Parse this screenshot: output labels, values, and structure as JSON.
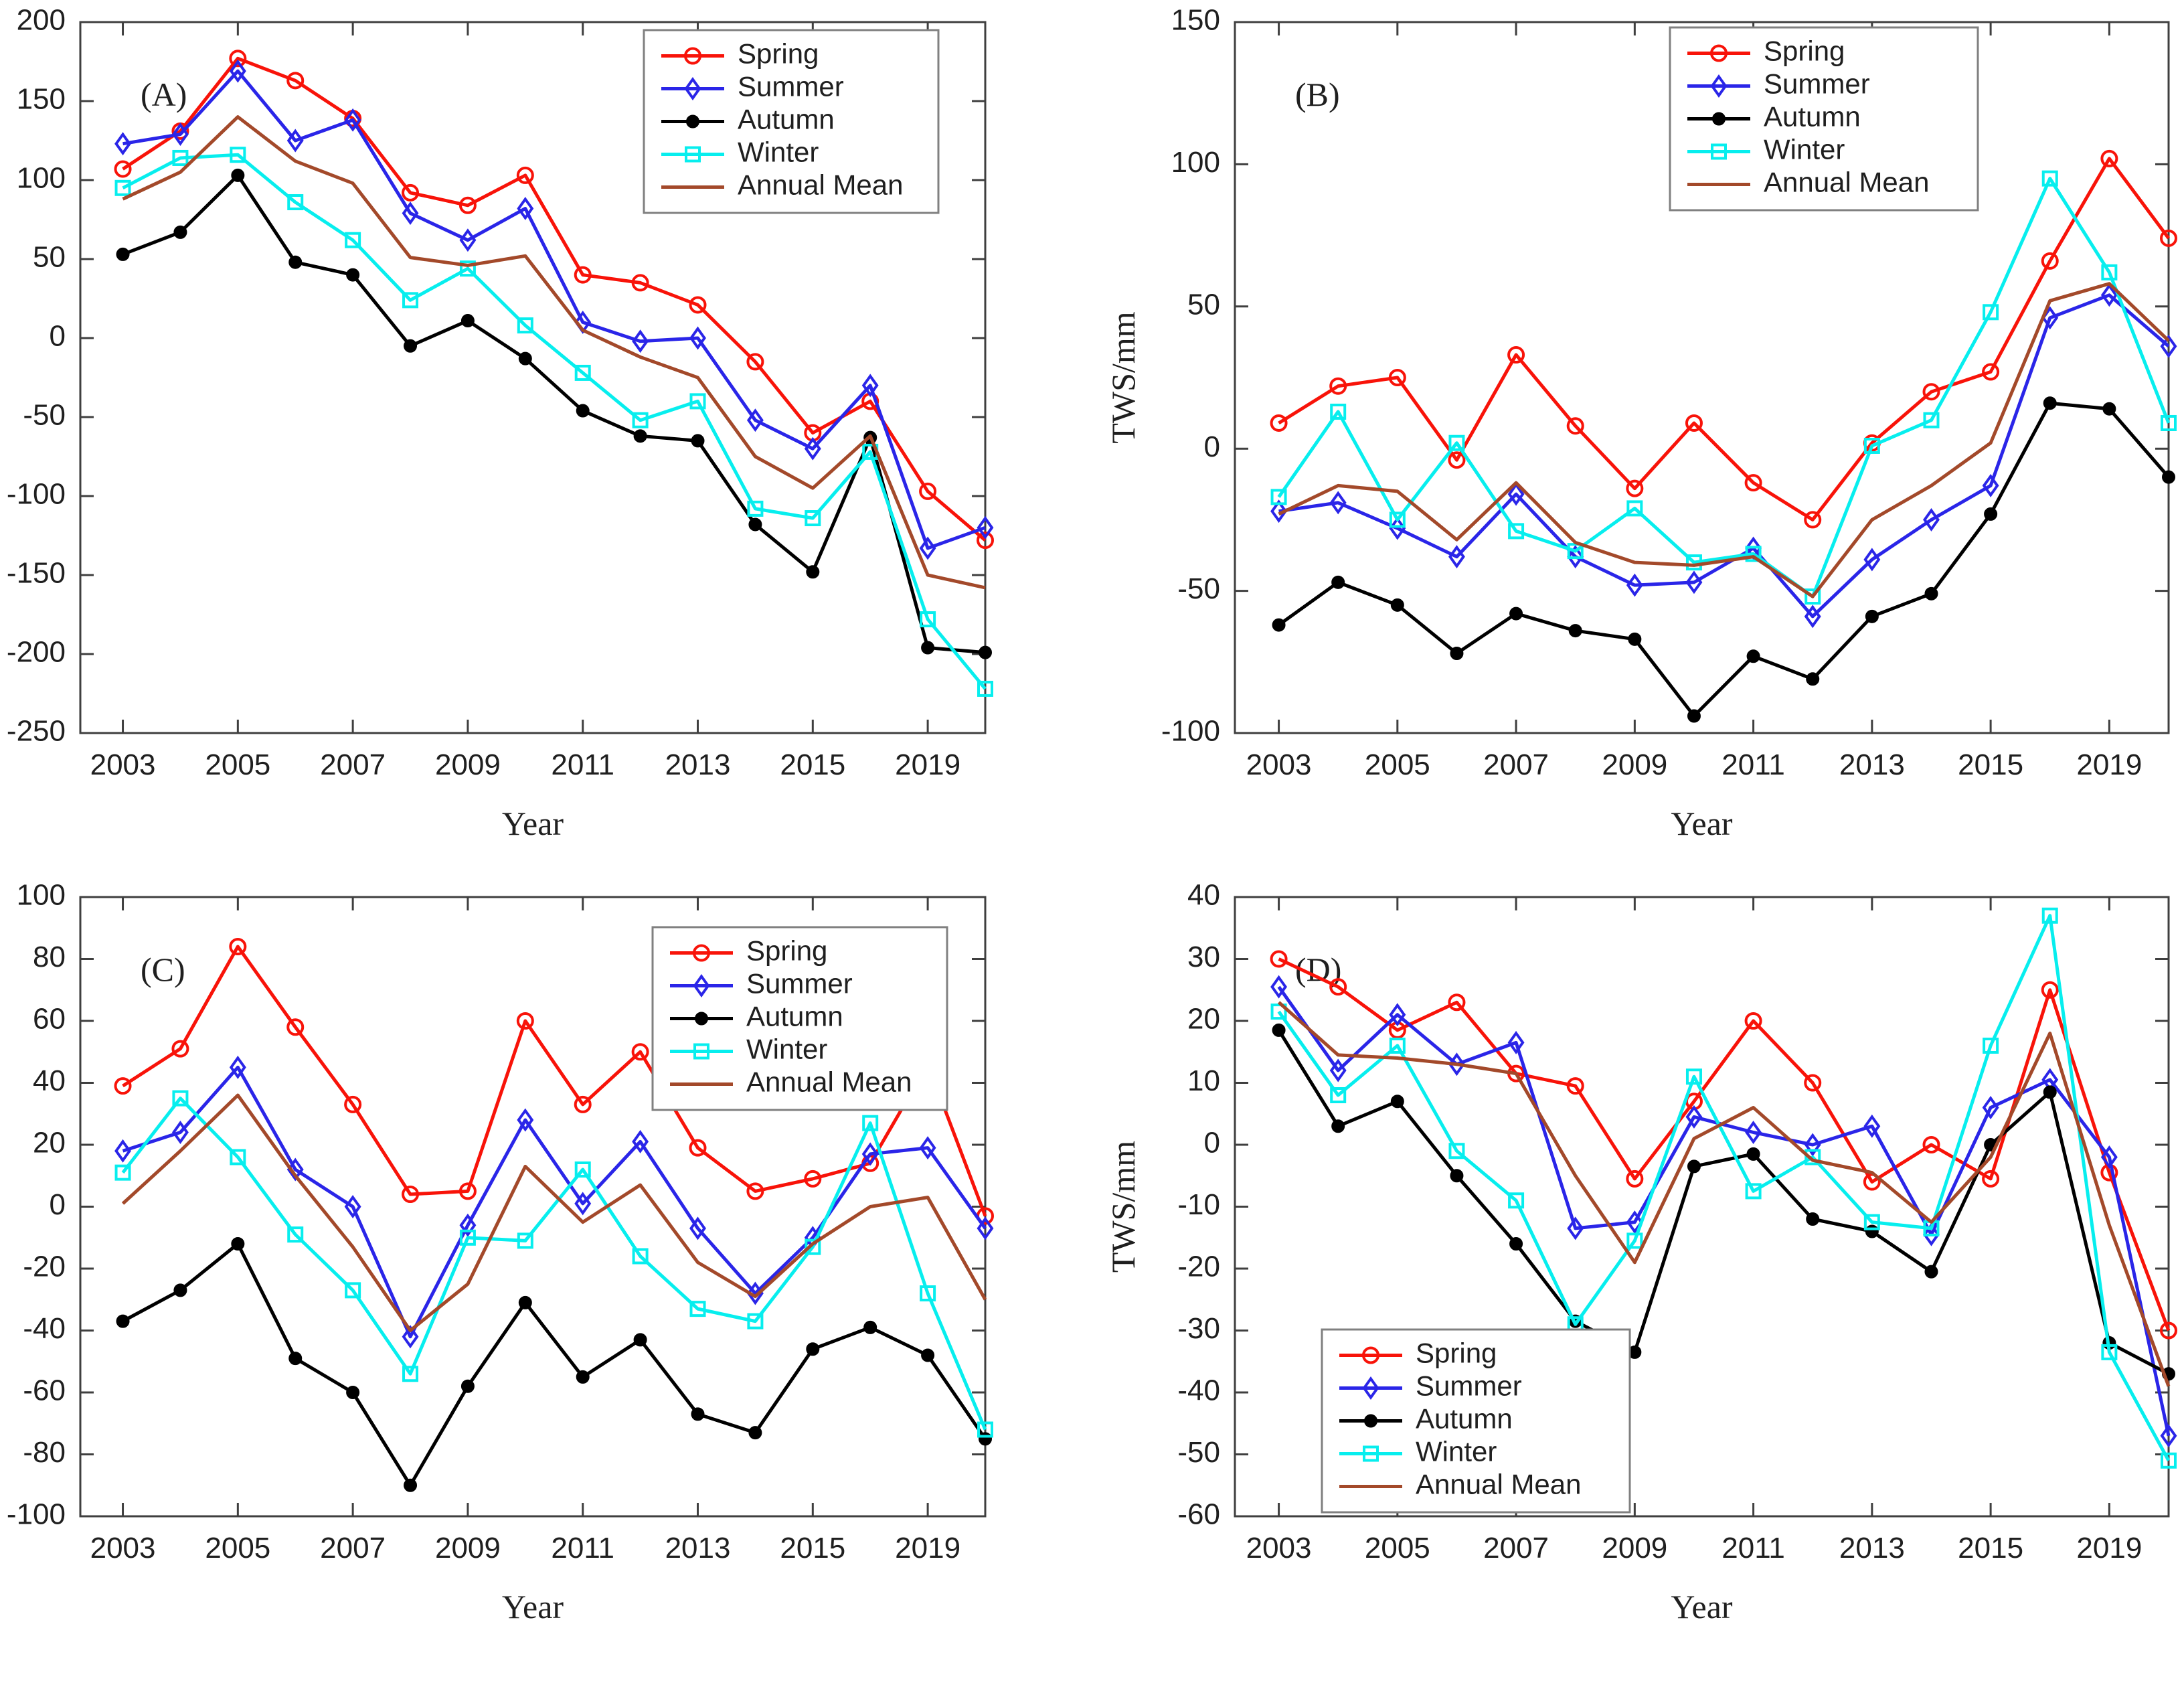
{
  "figure": {
    "xlabel": "Year",
    "ylabel": "TWS/mm",
    "x_years": [
      2003,
      2004,
      2005,
      2006,
      2007,
      2008,
      2009,
      2010,
      2011,
      2012,
      2013,
      2014,
      2015,
      2016,
      2019,
      2020
    ],
    "xtick_labels": [
      "2003",
      "2005",
      "2007",
      "2009",
      "2011",
      "2013",
      "2015",
      "2019"
    ],
    "xtick_indices": [
      0,
      2,
      4,
      6,
      8,
      10,
      12,
      14
    ],
    "legend_labels": [
      "Spring",
      "Summer",
      "Autumn",
      "Winter",
      "Annual Mean"
    ],
    "colors": {
      "spring": "#f81309",
      "summer": "#2a25e8",
      "autumn": "#000000",
      "winter": "#07eeee",
      "annual_mean": "#a3492a",
      "axis": "#3f3f3f",
      "text": "#1f1f1f",
      "legend_border": "#808080"
    }
  },
  "chart_data": [
    {
      "type": "line",
      "label": "(A)",
      "xlabel": "Year",
      "ylabel": "TWS/mm",
      "ylim": [
        -250,
        200
      ],
      "ytick_step": 50,
      "grid": false,
      "legend_position": "top-right",
      "x": [
        2003,
        2004,
        2005,
        2006,
        2007,
        2008,
        2009,
        2010,
        2011,
        2012,
        2013,
        2014,
        2015,
        2016,
        2019,
        2020
      ],
      "series": [
        {
          "name": "Spring",
          "marker": "circle",
          "color": "#f81309",
          "values": [
            107,
            131,
            177,
            163,
            139,
            92,
            84,
            103,
            40,
            35,
            21,
            -15,
            -60,
            -40,
            -97,
            -128
          ]
        },
        {
          "name": "Summer",
          "marker": "diamond",
          "color": "#2a25e8",
          "values": [
            123,
            129,
            169,
            125,
            138,
            79,
            62,
            82,
            10,
            -2,
            0,
            -52,
            -70,
            -30,
            -133,
            -120
          ]
        },
        {
          "name": "Autumn",
          "marker": "dot",
          "color": "#000000",
          "values": [
            53,
            67,
            103,
            48,
            40,
            -5,
            11,
            -13,
            -46,
            -62,
            -65,
            -118,
            -148,
            -63,
            -196,
            -199
          ]
        },
        {
          "name": "Winter",
          "marker": "square",
          "color": "#07eeee",
          "values": [
            95,
            114,
            116,
            86,
            62,
            24,
            44,
            8,
            -22,
            -52,
            -40,
            -108,
            -114,
            -72,
            -178,
            -222
          ]
        },
        {
          "name": "Annual Mean",
          "marker": "none",
          "color": "#a3492a",
          "values": [
            88,
            105,
            140,
            112,
            98,
            51,
            46,
            52,
            5,
            -12,
            -25,
            -75,
            -95,
            -62,
            -150,
            -158
          ]
        }
      ]
    },
    {
      "type": "line",
      "label": "(B)",
      "xlabel": "Year",
      "ylabel": "TWS/mm",
      "ylim": [
        -100,
        150
      ],
      "ytick_step": 50,
      "grid": false,
      "legend_position": "top-right",
      "x": [
        2003,
        2004,
        2005,
        2006,
        2007,
        2008,
        2009,
        2010,
        2011,
        2012,
        2013,
        2014,
        2015,
        2016,
        2019,
        2020
      ],
      "series": [
        {
          "name": "Spring",
          "marker": "circle",
          "color": "#f81309",
          "values": [
            9,
            22,
            25,
            -4,
            33,
            8,
            -14,
            9,
            -12,
            -25,
            2,
            20,
            27,
            66,
            102,
            74
          ]
        },
        {
          "name": "Summer",
          "marker": "diamond",
          "color": "#2a25e8",
          "values": [
            -22,
            -19,
            -28,
            -38,
            -16,
            -38,
            -48,
            -47,
            -35,
            -59,
            -39,
            -25,
            -13,
            46,
            54,
            36
          ]
        },
        {
          "name": "Autumn",
          "marker": "dot",
          "color": "#000000",
          "values": [
            -62,
            -47,
            -55,
            -72,
            -58,
            -64,
            -67,
            -94,
            -73,
            -81,
            -59,
            -51,
            -23,
            16,
            14,
            -10
          ]
        },
        {
          "name": "Winter",
          "marker": "square",
          "color": "#07eeee",
          "values": [
            -17,
            13,
            -25,
            2,
            -29,
            -36,
            -21,
            -40,
            -37,
            -52,
            1,
            10,
            48,
            95,
            62,
            9
          ]
        },
        {
          "name": "Annual Mean",
          "marker": "none",
          "color": "#a3492a",
          "values": [
            -23,
            -13,
            -15,
            -32,
            -12,
            -33,
            -40,
            -41,
            -38,
            -52,
            -25,
            -13,
            2,
            52,
            58,
            38
          ]
        }
      ]
    },
    {
      "type": "line",
      "label": "(C)",
      "xlabel": "Year",
      "ylabel": "TWS/mm",
      "ylim": [
        -100,
        100
      ],
      "ytick_step": 20,
      "grid": false,
      "legend_position": "top-right",
      "x": [
        2003,
        2004,
        2005,
        2006,
        2007,
        2008,
        2009,
        2010,
        2011,
        2012,
        2013,
        2014,
        2015,
        2016,
        2019,
        2020
      ],
      "series": [
        {
          "name": "Spring",
          "marker": "circle",
          "color": "#f81309",
          "values": [
            39,
            51,
            84,
            58,
            33,
            4,
            5,
            60,
            33,
            50,
            19,
            5,
            9,
            14,
            46,
            -3
          ]
        },
        {
          "name": "Summer",
          "marker": "diamond",
          "color": "#2a25e8",
          "values": [
            18,
            24,
            45,
            12,
            0,
            -42,
            -6,
            28,
            1,
            21,
            -7,
            -28,
            -10,
            17,
            19,
            -7
          ]
        },
        {
          "name": "Autumn",
          "marker": "dot",
          "color": "#000000",
          "values": [
            -37,
            -27,
            -12,
            -49,
            -60,
            -90,
            -58,
            -31,
            -55,
            -43,
            -67,
            -73,
            -46,
            -39,
            -48,
            -75
          ]
        },
        {
          "name": "Winter",
          "marker": "square",
          "color": "#07eeee",
          "values": [
            11,
            35,
            16,
            -9,
            -27,
            -54,
            -10,
            -11,
            12,
            -16,
            -33,
            -37,
            -13,
            27,
            -28,
            -72
          ]
        },
        {
          "name": "Annual Mean",
          "marker": "none",
          "color": "#a3492a",
          "values": [
            1,
            18,
            36,
            10,
            -13,
            -40,
            -25,
            13,
            -5,
            7,
            -18,
            -29,
            -12,
            0,
            3,
            -30
          ]
        }
      ]
    },
    {
      "type": "line",
      "label": "(D)",
      "xlabel": "Year",
      "ylabel": "TWS/mm",
      "ylim": [
        -60,
        40
      ],
      "ytick_step": 10,
      "grid": false,
      "legend_position": "bottom-left",
      "x": [
        2003,
        2004,
        2005,
        2006,
        2007,
        2008,
        2009,
        2010,
        2011,
        2012,
        2013,
        2014,
        2015,
        2016,
        2019,
        2020
      ],
      "series": [
        {
          "name": "Spring",
          "marker": "circle",
          "color": "#f81309",
          "values": [
            30,
            25.5,
            18.5,
            23,
            11.5,
            9.5,
            -5.5,
            7,
            20,
            10,
            -6,
            0,
            -5.5,
            25,
            -4.5,
            -30
          ]
        },
        {
          "name": "Summer",
          "marker": "diamond",
          "color": "#2a25e8",
          "values": [
            25.5,
            12,
            21,
            13,
            16.5,
            -13.5,
            -12.5,
            4.5,
            2,
            0,
            3,
            -14.5,
            6,
            10.5,
            -2,
            -47
          ]
        },
        {
          "name": "Autumn",
          "marker": "dot",
          "color": "#000000",
          "values": [
            18.5,
            3,
            7,
            -5,
            -16,
            -28.5,
            -33.5,
            -3.5,
            -1.5,
            -12,
            -14,
            -20.5,
            0,
            8.5,
            -32,
            -37
          ]
        },
        {
          "name": "Winter",
          "marker": "square",
          "color": "#07eeee",
          "values": [
            21.5,
            8,
            16,
            -1,
            -9,
            -29,
            -15.5,
            11,
            -7.5,
            -2,
            -12.5,
            -13.5,
            16,
            37,
            -33.5,
            -51
          ]
        },
        {
          "name": "Annual Mean",
          "marker": "none",
          "color": "#a3492a",
          "values": [
            23,
            14.5,
            14,
            13,
            11.5,
            -5,
            -19,
            1,
            6,
            -2.5,
            -4.5,
            -12.5,
            -2,
            18,
            -13,
            -39
          ]
        }
      ]
    }
  ]
}
